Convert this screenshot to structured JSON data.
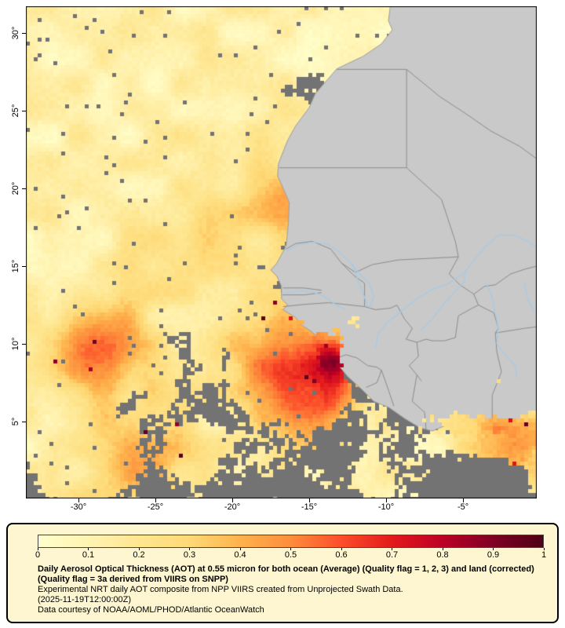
{
  "map": {
    "frame_color": "#000000",
    "colors": {
      "ocean_nodata": "#737373",
      "land": "#c9c9c9",
      "country_border": "#8c8c8c",
      "coastline": "#9e9e9e",
      "river": "#a8cbe4"
    },
    "x_axis": {
      "ticks": [
        {
          "label": "-30°",
          "value": -30
        },
        {
          "label": "-25°",
          "value": -25
        },
        {
          "label": "-20°",
          "value": -20
        },
        {
          "label": "-15°",
          "value": -15
        },
        {
          "label": "-10°",
          "value": -10
        },
        {
          "label": "-5°",
          "value": -5
        }
      ]
    },
    "y_axis": {
      "ticks": [
        {
          "label": "30°",
          "value": 30
        },
        {
          "label": "25°",
          "value": 25
        },
        {
          "label": "20°",
          "value": 20
        },
        {
          "label": "15°",
          "value": 15
        },
        {
          "label": "10°",
          "value": 10
        },
        {
          "label": "5°",
          "value": 5
        }
      ]
    }
  },
  "colorbar": {
    "min": 0,
    "max": 1,
    "tick_labels": [
      "0",
      "0.1",
      "0.2",
      "0.3",
      "0.4",
      "0.5",
      "0.6",
      "0.7",
      "0.8",
      "0.9",
      "1"
    ],
    "stops": [
      "#ffffcc",
      "#fff3b2",
      "#fee690",
      "#fed976",
      "#feb24c",
      "#fd8d3c",
      "#fc4e2a",
      "#e31a1c",
      "#bd0026",
      "#800026",
      "#4d0013"
    ]
  },
  "legend": {
    "background": "#fdf6d0",
    "title": "Daily Aerosol Optical Thickness (AOT) at 0.55 micron for both ocean (Average) (Quality flag = 1, 2, 3) and land (corrected) (Quality flag = 3a derived from VIIRS on SNPP)",
    "line2": "Experimental NRT daily AOT composite from NPP VIIRS created from Unprojected Swath Data.",
    "timestamp": "(2025-11-19T12:00:00Z)",
    "credit": "Data courtesy of NOAA/AOML/PHOD/Atlantic OceanWatch"
  },
  "chart_data": {
    "type": "heatmap",
    "title": "Daily Aerosol Optical Thickness (AOT) at 0.55 micron",
    "value_range": [
      0,
      1
    ],
    "colorbar_ticks": [
      0,
      0.1,
      0.2,
      0.3,
      0.4,
      0.5,
      0.6,
      0.7,
      0.8,
      0.9,
      1
    ],
    "x_ticks_deg_lon": [
      -30,
      -25,
      -20,
      -15,
      -10,
      -5
    ],
    "y_ticks_deg_lat": [
      30,
      25,
      20,
      15,
      10,
      5
    ],
    "date": "2025-11-19T12:00:00Z",
    "source": "NPP VIIRS / NOAA/AOML/PHOD/Atlantic OceanWatch",
    "legend_position": "bottom"
  }
}
